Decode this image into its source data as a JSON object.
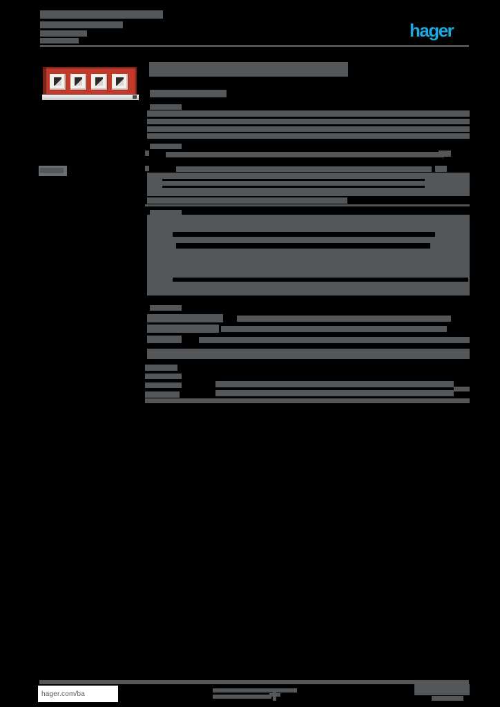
{
  "colors": {
    "background": "#000000",
    "bar_gray": "#54575a",
    "bar_light": "#6b6e71",
    "logo_blue": "#1BA9E1",
    "device_red": "#c13a2b",
    "device_red_dark": "#7a1f16",
    "footer_text": "#555555"
  },
  "header": {
    "logo": {
      "text": "hager"
    },
    "text_bars": [
      [
        58,
        15,
        178,
        12
      ],
      [
        58,
        31,
        120,
        10
      ],
      [
        58,
        44,
        68,
        9
      ],
      [
        58,
        55,
        56,
        8
      ]
    ],
    "divider": [
      58,
      65,
      621,
      3
    ]
  },
  "product_image": {
    "description_bars": [
      [
        56,
        240,
        41,
        15,
        "light"
      ],
      [
        58,
        243,
        34,
        8
      ]
    ],
    "window_count": 4,
    "window_offsets": [
      9,
      39,
      69,
      99
    ]
  },
  "content": {
    "title_bar": [
      216,
      90,
      288,
      21
    ],
    "bars": [
      [
        217,
        130,
        111,
        11
      ],
      [
        217,
        151,
        46,
        8
      ],
      [
        213,
        160,
        467,
        9
      ],
      [
        213,
        172,
        467,
        8
      ],
      [
        213,
        183,
        467,
        8
      ],
      [
        213,
        193,
        467,
        8
      ],
      [
        217,
        208,
        46,
        8
      ],
      [
        210,
        218,
        6,
        8
      ],
      [
        240,
        220,
        403,
        8
      ],
      [
        635,
        218,
        18,
        9
      ],
      [
        210,
        240,
        6,
        8
      ],
      [
        255,
        241,
        370,
        8
      ],
      [
        630,
        240,
        17,
        9
      ],
      [
        213,
        250,
        467,
        34
      ],
      [
        235,
        259,
        380,
        3,
        "gap"
      ],
      [
        235,
        269,
        380,
        3,
        "gap"
      ],
      [
        213,
        286,
        290,
        9
      ],
      [
        210,
        296,
        470,
        3
      ],
      [
        217,
        304,
        46,
        8
      ],
      [
        213,
        311,
        467,
        117
      ],
      [
        250,
        336,
        380,
        7,
        "gap"
      ],
      [
        255,
        352,
        368,
        8,
        "gap"
      ],
      [
        250,
        402,
        428,
        6,
        "gap"
      ],
      [
        217,
        442,
        46,
        8
      ],
      [
        213,
        455,
        110,
        12
      ],
      [
        343,
        457,
        310,
        9
      ],
      [
        213,
        470,
        104,
        12
      ],
      [
        320,
        472,
        327,
        9
      ],
      [
        213,
        486,
        50,
        11
      ],
      [
        288,
        488,
        392,
        9
      ],
      [
        213,
        505,
        467,
        15
      ],
      [
        248,
        528,
        9,
        9
      ],
      [
        210,
        528,
        38,
        9
      ],
      [
        210,
        541,
        53,
        8
      ],
      [
        210,
        554,
        53,
        8
      ],
      [
        210,
        567,
        50,
        9
      ],
      [
        312,
        552,
        345,
        9
      ],
      [
        312,
        565,
        345,
        9
      ],
      [
        657,
        560,
        23,
        7
      ],
      [
        210,
        577,
        470,
        7
      ]
    ]
  },
  "footer": {
    "website_label": "hager.com/ba",
    "divider": [
      57,
      985,
      622,
      6
    ],
    "bars": [
      [
        308,
        997,
        122,
        6
      ],
      [
        308,
        1006,
        85,
        6
      ],
      [
        395,
        999,
        5,
        16
      ],
      [
        390,
        1004,
        16,
        5
      ],
      [
        600,
        991,
        80,
        16
      ],
      [
        625,
        1008,
        46,
        7
      ]
    ]
  }
}
